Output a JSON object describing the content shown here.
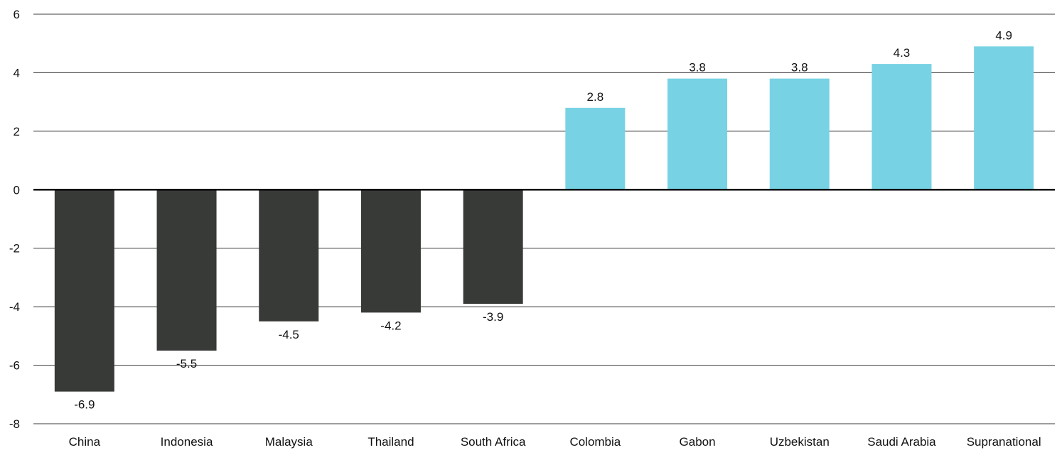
{
  "chart_data": {
    "type": "bar",
    "categories": [
      "China",
      "Indonesia",
      "Malaysia",
      "Thailand",
      "South Africa",
      "Colombia",
      "Gabon",
      "Uzbekistan",
      "Saudi Arabia",
      "Supranational"
    ],
    "values": [
      -6.9,
      -5.5,
      -4.5,
      -4.2,
      -3.9,
      2.8,
      3.8,
      3.8,
      4.3,
      4.9
    ],
    "data_labels": [
      "-6.9",
      "-5.5",
      "-4.5",
      "-4.2",
      "-3.9",
      "2.8",
      "3.8",
      "3.8",
      "4.3",
      "4.9"
    ],
    "yticks": [
      6,
      4,
      2,
      0,
      -2,
      -4,
      -6,
      -8
    ],
    "ylim": [
      -8,
      6
    ],
    "title": "",
    "xlabel": "",
    "ylabel": "",
    "grid": true,
    "legend": "none",
    "colors": {
      "negative": "#383a37",
      "positive": "#77d3e4",
      "grid": "#3c3c3c",
      "zero_line": "#000000",
      "text": "#111111"
    }
  }
}
